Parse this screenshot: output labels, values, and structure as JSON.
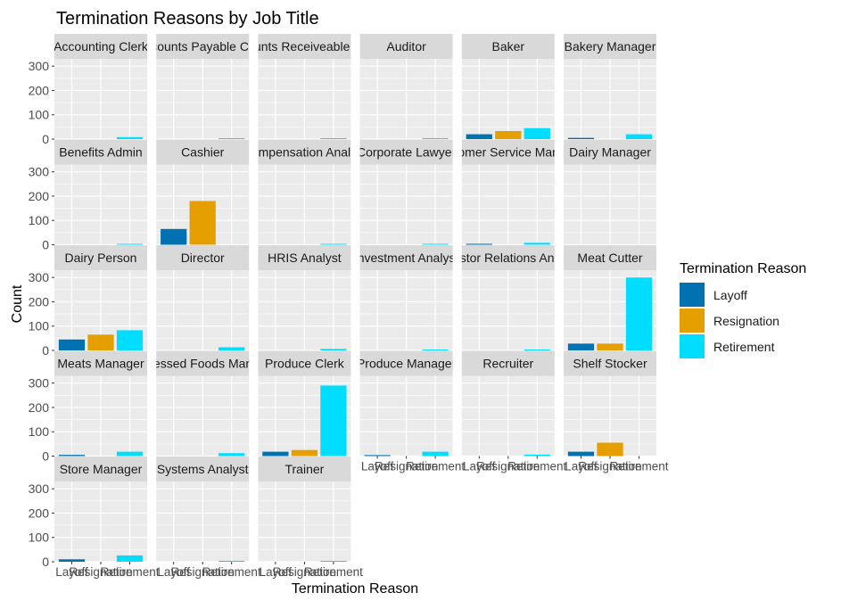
{
  "chart_data": {
    "type": "bar",
    "title": "Termination Reasons by Job Title",
    "xlabel": "Termination Reason",
    "ylabel": "Count",
    "ylim": [
      0,
      330
    ],
    "yticks": [
      0,
      100,
      200,
      300
    ],
    "categories": [
      "Layoff",
      "Resignation",
      "Retirement"
    ],
    "legend": {
      "title": "Termination Reason",
      "position": "right",
      "entries": [
        "Layoff",
        "Resignation",
        "Retirement"
      ]
    },
    "colors": {
      "Layoff": "#0072B2",
      "Resignation": "#E69F00",
      "Retirement": "#00DDFF",
      "panel_bg": "#EBEBEB",
      "strip_bg": "#D9D9D9",
      "grid": "#FFFFFF",
      "text": "#000000",
      "axis_text": "#4D4D4D"
    },
    "grid": true,
    "facets": [
      {
        "label": "Accounting Clerk",
        "values": [
          0,
          0,
          8
        ]
      },
      {
        "label": "Accounts Payable Clerk",
        "values": [
          0,
          0,
          3
        ]
      },
      {
        "label": "Accounts Receiveable Clerk",
        "values": [
          0,
          0,
          3
        ]
      },
      {
        "label": "Auditor",
        "values": [
          0,
          0,
          3
        ]
      },
      {
        "label": "Baker",
        "values": [
          20,
          33,
          45
        ]
      },
      {
        "label": "Bakery Manager",
        "values": [
          5,
          0,
          20
        ]
      },
      {
        "label": "Benefits Admin",
        "values": [
          0,
          0,
          3
        ]
      },
      {
        "label": "Cashier",
        "values": [
          65,
          180,
          0
        ]
      },
      {
        "label": "Compensation Analyst",
        "values": [
          0,
          0,
          3
        ]
      },
      {
        "label": "Corporate Lawyer",
        "values": [
          0,
          0,
          3
        ]
      },
      {
        "label": "Customer Service Manager",
        "values": [
          4,
          0,
          8
        ]
      },
      {
        "label": "Dairy Manager",
        "values": [
          0,
          0,
          0
        ]
      },
      {
        "label": "Dairy Person",
        "values": [
          45,
          65,
          83
        ]
      },
      {
        "label": "Director",
        "values": [
          0,
          0,
          13
        ]
      },
      {
        "label": "HRIS Analyst",
        "values": [
          0,
          0,
          6
        ]
      },
      {
        "label": "Investment Analyst",
        "values": [
          0,
          0,
          3
        ]
      },
      {
        "label": "Investor Relations Analyst",
        "values": [
          0,
          0,
          3
        ]
      },
      {
        "label": "Meat Cutter",
        "values": [
          28,
          28,
          300
        ]
      },
      {
        "label": "Meats Manager",
        "values": [
          5,
          0,
          18
        ]
      },
      {
        "label": "Processed Foods Manager",
        "values": [
          0,
          0,
          12
        ]
      },
      {
        "label": "Produce Clerk",
        "values": [
          18,
          25,
          290
        ]
      },
      {
        "label": "Produce Manager",
        "values": [
          4,
          0,
          18
        ]
      },
      {
        "label": "Recruiter",
        "values": [
          0,
          0,
          6
        ]
      },
      {
        "label": "Shelf Stocker",
        "values": [
          18,
          55,
          0
        ]
      },
      {
        "label": "Store Manager",
        "values": [
          10,
          0,
          26
        ]
      },
      {
        "label": "Systems Analyst",
        "values": [
          0,
          0,
          4
        ]
      },
      {
        "label": "Trainer",
        "values": [
          0,
          0,
          3
        ]
      }
    ]
  }
}
